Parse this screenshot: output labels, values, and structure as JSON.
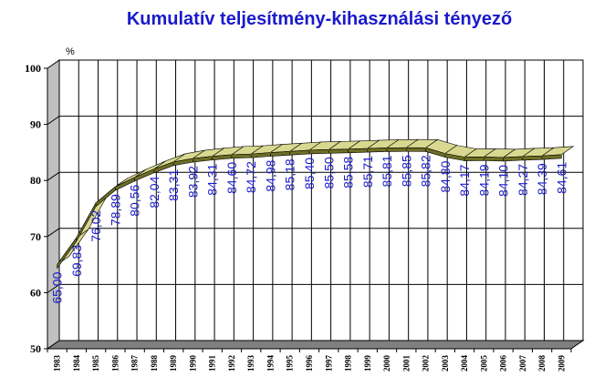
{
  "chart_data": {
    "type": "line",
    "title": "Kumulatív teljesítmény-kihasználási tényező",
    "ylabel": "%",
    "xlabel": "",
    "ylim": [
      50,
      100
    ],
    "yticks": [
      "50",
      "60",
      "70",
      "80",
      "90",
      "100"
    ],
    "grid": true,
    "x": [
      "1983",
      "1984",
      "1985",
      "1986",
      "1987",
      "1988",
      "1989",
      "1990",
      "1991",
      "1992",
      "1993",
      "1994",
      "1995",
      "1996",
      "1997",
      "1998",
      "1999",
      "2000",
      "2001",
      "2002",
      "2003",
      "2004",
      "2005",
      "2006",
      "2007",
      "2008",
      "2009"
    ],
    "values": [
      65.0,
      69.83,
      76.02,
      78.89,
      80.56,
      82.04,
      83.31,
      83.92,
      84.31,
      84.6,
      84.72,
      84.98,
      85.18,
      85.4,
      85.5,
      85.58,
      85.71,
      85.81,
      85.85,
      85.82,
      84.8,
      84.17,
      84.19,
      84.1,
      84.27,
      84.39,
      84.61
    ],
    "labels": [
      "65,00",
      "69,83",
      "76,02",
      "78,89",
      "80,56",
      "82,04",
      "83,31",
      "83,92",
      "84,31",
      "84,60",
      "84,72",
      "84,98",
      "85,18",
      "85,40",
      "85,50",
      "85,58",
      "85,71",
      "85,81",
      "85,85",
      "85,82",
      "84,80",
      "84,17",
      "84,19",
      "84,10",
      "84,27",
      "84,39",
      "84,61"
    ],
    "colors": {
      "ribbon_top": "#d8d890",
      "ribbon_front": "#6e6e26",
      "wall": "#ffffff",
      "side_wall": "#c0c0c0",
      "floor": "#808080",
      "labels": "#1a1acc",
      "title": "#1a1acc"
    }
  }
}
